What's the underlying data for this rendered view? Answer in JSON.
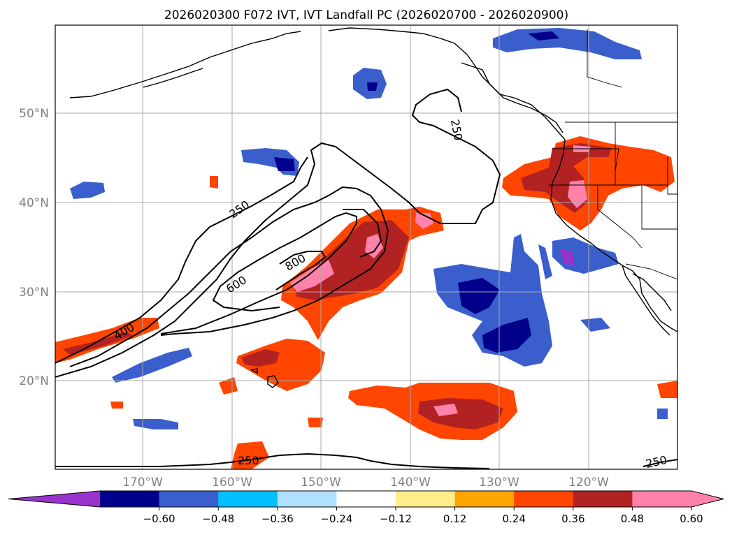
{
  "title": "2026020300 F072 IVT, IVT Landfall PC (2026020700 - 2026020900)",
  "map": {
    "lat_labels": [
      "50°N",
      "40°N",
      "30°N",
      "20°N"
    ],
    "lon_labels": [
      "170°W",
      "160°W",
      "150°W",
      "140°W",
      "130°W",
      "120°W"
    ],
    "grid": true
  },
  "contours": {
    "labels": [
      "250",
      "250",
      "250",
      "250",
      "400",
      "600",
      "800"
    ]
  },
  "colorbar": {
    "tick_labels": [
      "−0.60",
      "−0.48",
      "−0.36",
      "−0.24",
      "−0.12",
      "0.12",
      "0.24",
      "0.36",
      "0.48",
      "0.60"
    ],
    "colors": [
      "#9932CC",
      "#00008B",
      "#3A5FCD",
      "#00BFFF",
      "#B0E0FF",
      "#FFFFFF",
      "#FFEC8B",
      "#FFA500",
      "#FF4500",
      "#B22222",
      "#FF82AB",
      "#FF82AB"
    ]
  }
}
